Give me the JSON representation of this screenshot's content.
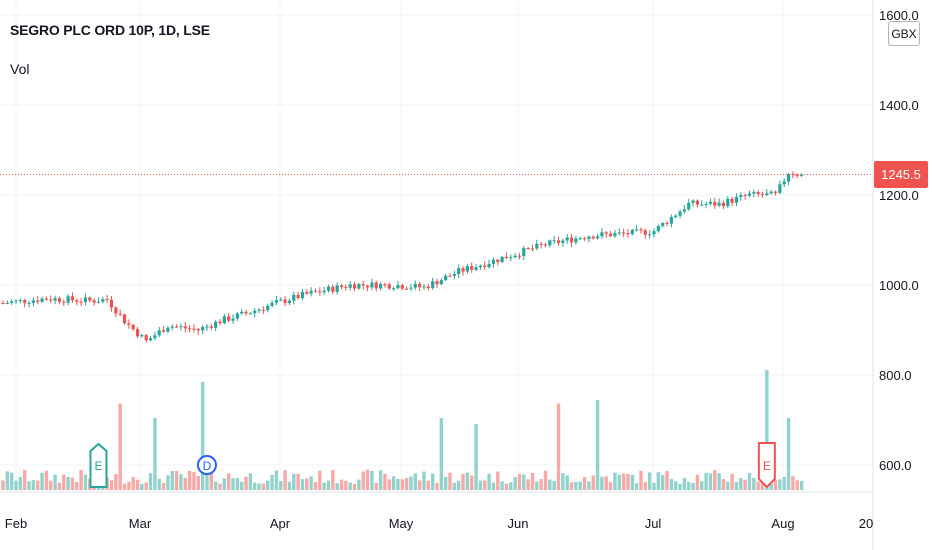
{
  "header": {
    "title": "SEGRO PLC ORD 10P, 1D, LSE",
    "volume_label": "Vol",
    "currency": "GBX"
  },
  "last_price": "1245.5",
  "colors": {
    "up": "#26a69a",
    "down": "#ef5350",
    "grid": "#f0f3fa",
    "axis_text": "#131722",
    "volume_up": "#92d2cc",
    "volume_down": "#f7a9a7"
  },
  "chart_data": {
    "type": "candlestick",
    "title": "SEGRO PLC ORD 10P, 1D, LSE",
    "y_axis_labels": [
      "1600.0",
      "1400.0",
      "1200.0",
      "1000.0",
      "800.0",
      "600.0"
    ],
    "y_ticks": [
      1600,
      1400,
      1200,
      1000,
      800,
      600
    ],
    "x_axis_labels": [
      "Feb",
      "Mar",
      "Apr",
      "May",
      "Jun",
      "Jul",
      "Aug",
      "20"
    ],
    "grid": true,
    "last_price": 1245.5,
    "price_path": [
      {
        "day": 0,
        "price": 960
      },
      {
        "day": 10,
        "price": 970
      },
      {
        "day": 20,
        "price": 965
      },
      {
        "day": 24,
        "price": 968
      },
      {
        "day": 28,
        "price": 920
      },
      {
        "day": 33,
        "price": 875
      },
      {
        "day": 38,
        "price": 910
      },
      {
        "day": 45,
        "price": 900
      },
      {
        "day": 50,
        "price": 920
      },
      {
        "day": 57,
        "price": 940
      },
      {
        "day": 63,
        "price": 960
      },
      {
        "day": 70,
        "price": 980
      },
      {
        "day": 80,
        "price": 1000
      },
      {
        "day": 90,
        "price": 1000
      },
      {
        "day": 97,
        "price": 995
      },
      {
        "day": 105,
        "price": 1030
      },
      {
        "day": 115,
        "price": 1060
      },
      {
        "day": 125,
        "price": 1090
      },
      {
        "day": 135,
        "price": 1110
      },
      {
        "day": 145,
        "price": 1115
      },
      {
        "day": 150,
        "price": 1120
      },
      {
        "day": 158,
        "price": 1180
      },
      {
        "day": 165,
        "price": 1180
      },
      {
        "day": 172,
        "price": 1200
      },
      {
        "day": 178,
        "price": 1200
      },
      {
        "day": 181,
        "price": 1250
      },
      {
        "day": 184,
        "price": 1245
      }
    ],
    "volume_spikes": [
      {
        "day": 27,
        "level": 0.72
      },
      {
        "day": 35,
        "level": 0.6
      },
      {
        "day": 46,
        "level": 0.9
      },
      {
        "day": 101,
        "level": 0.6
      },
      {
        "day": 109,
        "level": 0.55
      },
      {
        "day": 128,
        "level": 0.72
      },
      {
        "day": 137,
        "level": 0.75
      },
      {
        "day": 176,
        "level": 1.0
      },
      {
        "day": 181,
        "level": 0.6
      }
    ],
    "events": [
      {
        "type": "earnings",
        "label": "E",
        "day": 22,
        "color": "#26a69a"
      },
      {
        "type": "dividend",
        "label": "D",
        "day": 47,
        "color": "#2962ff"
      },
      {
        "type": "earnings",
        "label": "E",
        "day": 176,
        "color": "#ef5350"
      }
    ]
  }
}
